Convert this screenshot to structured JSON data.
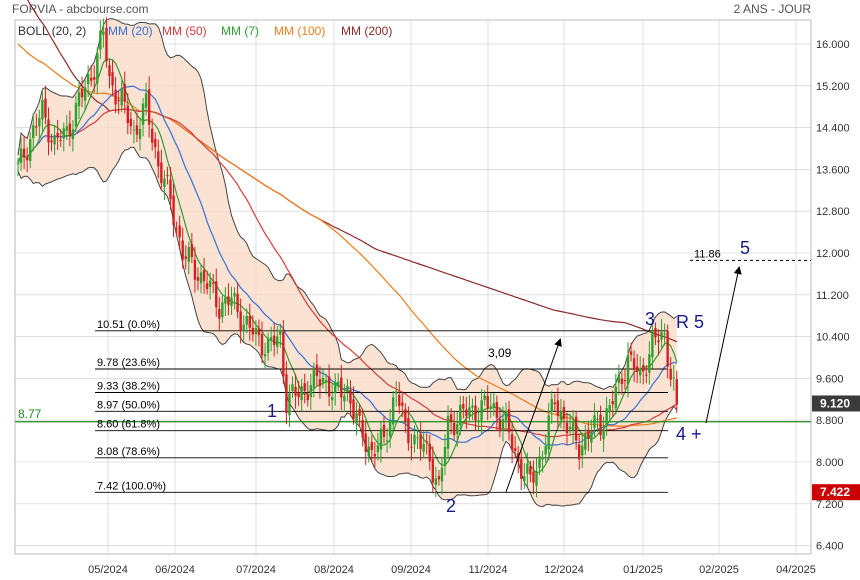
{
  "header": {
    "title": "FORVIA - abcbourse.com",
    "period": "2 ANS - JOUR"
  },
  "legend": [
    {
      "label": "BOLL (20, 2)",
      "color": "#333333"
    },
    {
      "label": "MM (20)",
      "color": "#3a6fd8"
    },
    {
      "label": "MM (50)",
      "color": "#d83a3a"
    },
    {
      "label": "MM (7)",
      "color": "#2f9e2f"
    },
    {
      "label": "MM (100)",
      "color": "#f07a1a"
    },
    {
      "label": "MM (200)",
      "color": "#8b2a2a"
    }
  ],
  "colors": {
    "up": "#2ea02e",
    "down": "#d42020",
    "grid": "#cccccc",
    "band_fill": "#f9d9c4",
    "band_line": "#444444",
    "h_line": "#1f8a1f",
    "fib": "#000000",
    "last_bg": "#3a3a3a",
    "min_bg": "#cc0000",
    "wave": "#1a1a8c"
  },
  "chart_data": {
    "type": "candlestick",
    "y_axis": {
      "ticks": [
        "16.000",
        "15.200",
        "14.400",
        "13.600",
        "12.800",
        "12.000",
        "11.200",
        "10.400",
        "9.600",
        "8.800",
        "8.000",
        "7.200",
        "6.400"
      ],
      "range": [
        6.2,
        16.4
      ]
    },
    "x_axis": {
      "ticks": [
        "05/2024",
        "06/2024",
        "07/2024",
        "08/2024",
        "09/2024",
        "11/2024",
        "12/2024",
        "01/2025",
        "02/2025",
        "04/2025"
      ]
    },
    "last_price_label": "9.120",
    "min_price_label": "7.422",
    "horizontal_level": {
      "value": 8.77,
      "label": "8.77"
    },
    "fibonacci": [
      {
        "value": 10.51,
        "label": "10.51  (0.0%)"
      },
      {
        "value": 9.78,
        "label": "9.78  (23.6%)"
      },
      {
        "value": 9.33,
        "label": "9.33  (38.2%)"
      },
      {
        "value": 8.97,
        "label": "8.97  (50.0%)"
      },
      {
        "value": 8.6,
        "label": "8.60  (61.8%)"
      },
      {
        "value": 8.08,
        "label": "8.08  (78.6%)"
      },
      {
        "value": 7.42,
        "label": "7.42  (100.0%)"
      }
    ],
    "target": {
      "value": 11.86,
      "label": "11.86"
    },
    "annotations": {
      "move": "3,09"
    },
    "waves": [
      "1",
      "2",
      "3",
      "R 5",
      "4 +",
      "5"
    ],
    "price_anchors": [
      [
        0,
        13.6
      ],
      [
        4,
        14.2
      ],
      [
        8,
        14.7
      ],
      [
        12,
        14.1
      ],
      [
        16,
        14.3
      ],
      [
        20,
        14.9
      ],
      [
        24,
        15.4
      ],
      [
        28,
        16.2
      ],
      [
        30,
        15.3
      ],
      [
        34,
        14.9
      ],
      [
        38,
        14.3
      ],
      [
        42,
        14.8
      ],
      [
        46,
        13.7
      ],
      [
        50,
        13.0
      ],
      [
        54,
        12.0
      ],
      [
        58,
        11.7
      ],
      [
        62,
        11.4
      ],
      [
        66,
        11.0
      ],
      [
        70,
        11.1
      ],
      [
        74,
        10.7
      ],
      [
        78,
        10.4
      ],
      [
        82,
        10.2
      ],
      [
        86,
        10.4
      ],
      [
        88,
        9.2
      ],
      [
        92,
        9.3
      ],
      [
        96,
        9.5
      ],
      [
        100,
        9.6
      ],
      [
        104,
        9.3
      ],
      [
        108,
        9.4
      ],
      [
        112,
        8.6
      ],
      [
        116,
        8.2
      ],
      [
        120,
        8.4
      ],
      [
        124,
        9.4
      ],
      [
        127,
        8.6
      ],
      [
        131,
        8.4
      ],
      [
        135,
        8.1
      ],
      [
        138,
        7.5
      ],
      [
        141,
        8.7
      ],
      [
        145,
        8.9
      ],
      [
        150,
        9.0
      ],
      [
        155,
        9.1
      ],
      [
        160,
        8.7
      ],
      [
        164,
        8.0
      ],
      [
        168,
        7.6
      ],
      [
        172,
        8.2
      ],
      [
        176,
        9.2
      ],
      [
        180,
        8.7
      ],
      [
        184,
        8.3
      ],
      [
        188,
        8.6
      ],
      [
        192,
        8.8
      ],
      [
        196,
        9.3
      ],
      [
        200,
        10.0
      ],
      [
        204,
        9.6
      ],
      [
        208,
        10.3
      ],
      [
        212,
        10.4
      ],
      [
        216,
        9.1
      ]
    ],
    "ma_color_keys": {
      "ma7": "#2f9e2f",
      "ma20": "#3a6fd8",
      "ma50": "#d83a3a",
      "ma100": "#f07a1a",
      "ma200": "#8b2a2a"
    }
  }
}
